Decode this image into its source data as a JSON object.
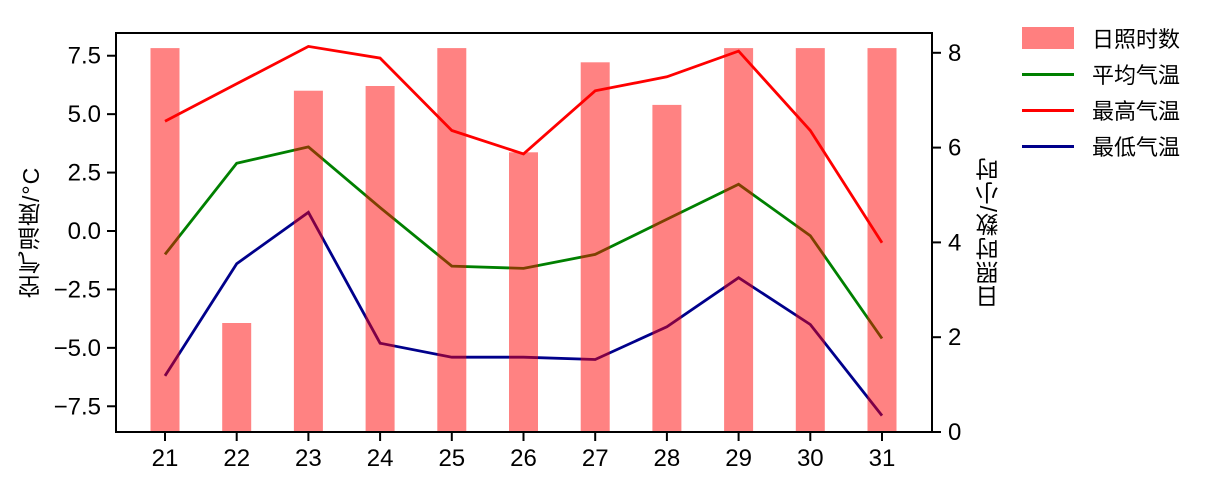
{
  "chart_data": {
    "type": "bar+line",
    "title": "",
    "categories": [
      "21",
      "22",
      "23",
      "24",
      "25",
      "26",
      "27",
      "28",
      "29",
      "30",
      "31"
    ],
    "bar_series": {
      "key": "sunshine-hours",
      "name": "日照时数",
      "axis": "right",
      "unit": "小时",
      "base_color": "#ff0000",
      "legend_color": "#ff7f7f",
      "values": [
        8.1,
        2.3,
        7.2,
        7.3,
        8.1,
        5.9,
        7.8,
        6.9,
        8.1,
        8.1,
        8.1
      ]
    },
    "line_series": [
      {
        "key": "avg-temp",
        "name": "平均气温",
        "color": "#008000",
        "axis": "left",
        "values": [
          -1.0,
          2.9,
          3.6,
          1.0,
          -1.5,
          -1.6,
          -1.0,
          0.5,
          2.0,
          -0.2,
          -4.6
        ]
      },
      {
        "key": "max-temp",
        "name": "最高气温",
        "color": "#ff0000",
        "axis": "left",
        "values": [
          4.7,
          6.3,
          7.9,
          7.4,
          4.3,
          3.3,
          6.0,
          6.6,
          7.7,
          4.3,
          -0.5
        ]
      },
      {
        "key": "min-temp",
        "name": "最低气温",
        "color": "#00008b",
        "axis": "left",
        "values": [
          -6.2,
          -1.4,
          0.8,
          -4.8,
          -5.4,
          -5.4,
          -5.5,
          -4.1,
          -2.0,
          -4.0,
          -7.9
        ]
      }
    ],
    "left_axis": {
      "label": "空气温度/°C",
      "ticks": [
        7.5,
        5.0,
        2.5,
        0.0,
        -2.5,
        -5.0,
        -7.5
      ],
      "tick_labels": [
        "7.5",
        "5.0",
        "2.5",
        "0.0",
        "−2.5",
        "−5.0",
        "−7.5"
      ],
      "range": [
        -8.6,
        8.47
      ]
    },
    "right_axis": {
      "label": "日照时数/小时",
      "ticks": [
        0,
        2,
        4,
        6,
        8
      ],
      "tick_labels": [
        "0",
        "2",
        "4",
        "6",
        "8"
      ],
      "range": [
        0,
        8.42
      ]
    },
    "x_axis": {
      "label": "",
      "tick_labels": [
        "21",
        "22",
        "23",
        "24",
        "25",
        "26",
        "27",
        "28",
        "29",
        "30",
        "31"
      ]
    },
    "grid": false,
    "legend_position": "outside-upper-right"
  },
  "legend": {
    "items": [
      {
        "label": "日照时数",
        "type": "patch",
        "color": "#ff7f7f"
      },
      {
        "label": "平均气温",
        "type": "line",
        "color": "#008000"
      },
      {
        "label": "最高气温",
        "type": "line",
        "color": "#ff0000"
      },
      {
        "label": "最低气温",
        "type": "line",
        "color": "#00008b"
      }
    ]
  }
}
